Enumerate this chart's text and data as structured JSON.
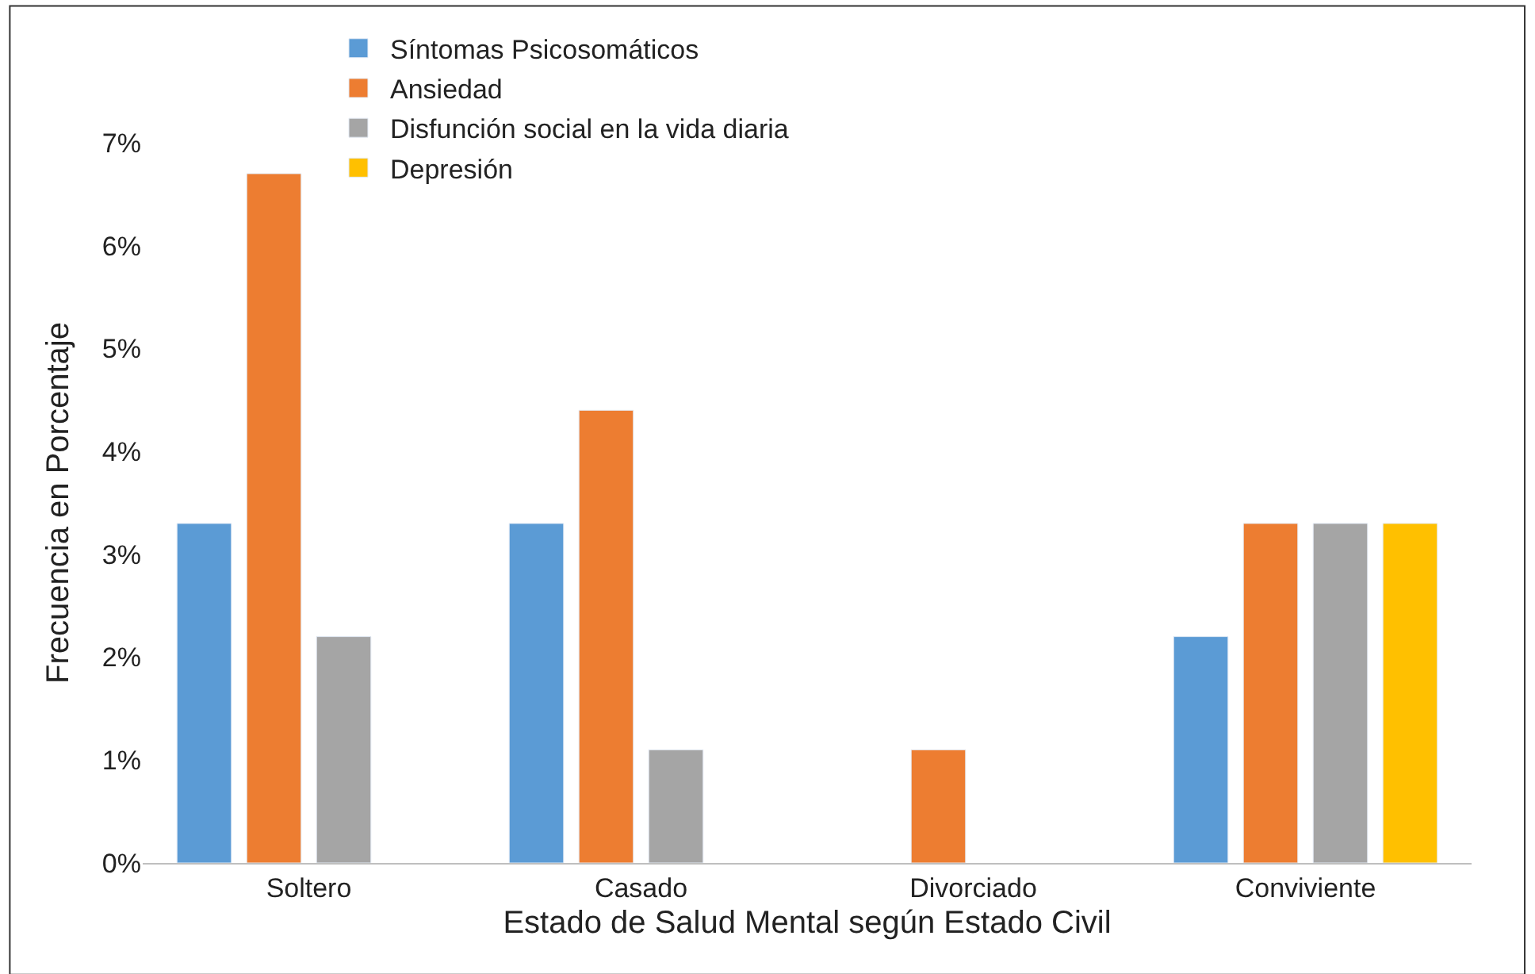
{
  "chart_data": {
    "type": "bar",
    "xlabel": "Estado de Salud Mental según Estado Civil",
    "ylabel": "Frecuencia en Porcentaje",
    "categories": [
      "Soltero",
      "Casado",
      "Divorciado",
      "Conviviente"
    ],
    "series": [
      {
        "name": "Síntomas Psicosomáticos",
        "color": "#5b9bd5",
        "values": [
          3.3,
          3.3,
          null,
          2.2
        ]
      },
      {
        "name": "Ansiedad",
        "color": "#ed7d31",
        "values": [
          6.7,
          4.4,
          1.1,
          3.3
        ]
      },
      {
        "name": "Disfunción social en la vida diaria",
        "color": "#a5a5a5",
        "values": [
          2.2,
          1.1,
          null,
          3.3
        ]
      },
      {
        "name": "Depresión",
        "color": "#ffc000",
        "values": [
          null,
          null,
          null,
          3.3
        ]
      }
    ],
    "ylim": [
      0,
      7
    ],
    "yticks": [
      {
        "value": 0,
        "label": "0%"
      },
      {
        "value": 1,
        "label": "1%"
      },
      {
        "value": 2,
        "label": "2%"
      },
      {
        "value": 3,
        "label": "3%"
      },
      {
        "value": 4,
        "label": "4%"
      },
      {
        "value": 5,
        "label": "5%"
      },
      {
        "value": 6,
        "label": "6%"
      },
      {
        "value": 7,
        "label": "7%"
      }
    ],
    "legend": "top"
  }
}
